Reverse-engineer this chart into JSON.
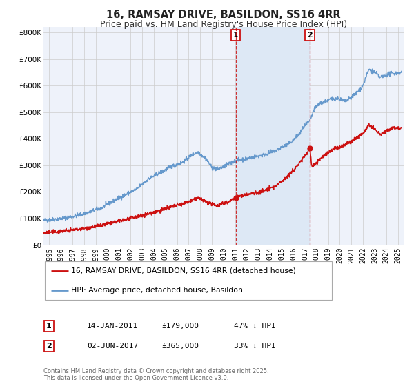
{
  "title": "16, RAMSAY DRIVE, BASILDON, SS16 4RR",
  "subtitle": "Price paid vs. HM Land Registry's House Price Index (HPI)",
  "title_fontsize": 10.5,
  "subtitle_fontsize": 9,
  "background_color": "#ffffff",
  "plot_bg_color": "#eef2fa",
  "grid_color": "#cccccc",
  "hpi_color": "#6699cc",
  "hpi_lw": 1.0,
  "price_color": "#cc1111",
  "price_lw": 1.2,
  "shade_color": "#dde8f5",
  "ylim": [
    0,
    820000
  ],
  "yticks": [
    0,
    100000,
    200000,
    300000,
    400000,
    500000,
    600000,
    700000,
    800000
  ],
  "ytick_labels": [
    "£0",
    "£100K",
    "£200K",
    "£300K",
    "£400K",
    "£500K",
    "£600K",
    "£700K",
    "£800K"
  ],
  "xmin": 1994.5,
  "xmax": 2025.5,
  "xticks": [
    1995,
    1996,
    1997,
    1998,
    1999,
    2000,
    2001,
    2002,
    2003,
    2004,
    2005,
    2006,
    2007,
    2008,
    2009,
    2010,
    2011,
    2012,
    2013,
    2014,
    2015,
    2016,
    2017,
    2018,
    2019,
    2020,
    2021,
    2022,
    2023,
    2024,
    2025
  ],
  "marker1_x": 2011.04,
  "marker1_y": 179000,
  "marker1_label": "1",
  "marker1_date": "14-JAN-2011",
  "marker1_price": "£179,000",
  "marker1_hpi": "47% ↓ HPI",
  "marker2_x": 2017.42,
  "marker2_y": 365000,
  "marker2_label": "2",
  "marker2_date": "02-JUN-2017",
  "marker2_price": "£365,000",
  "marker2_hpi": "33% ↓ HPI",
  "legend_label_price": "16, RAMSAY DRIVE, BASILDON, SS16 4RR (detached house)",
  "legend_label_hpi": "HPI: Average price, detached house, Basildon",
  "footer": "Contains HM Land Registry data © Crown copyright and database right 2025.\nThis data is licensed under the Open Government Licence v3.0."
}
